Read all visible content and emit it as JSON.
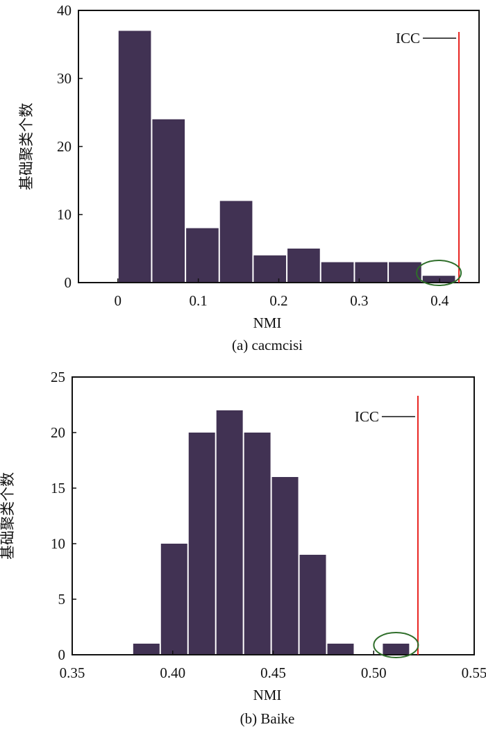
{
  "chart_data": [
    {
      "type": "bar",
      "caption": "(a) cacmcisi",
      "xlabel": "NMI",
      "ylabel": "基础聚类个数",
      "xlim": [
        -0.049,
        0.449
      ],
      "ylim": [
        0,
        40
      ],
      "xticks": [
        "0",
        "0.1",
        "0.2",
        "0.3",
        "0.4"
      ],
      "xtick_values": [
        0,
        0.1,
        0.2,
        0.3,
        0.4
      ],
      "yticks": [
        "0",
        "10",
        "20",
        "30",
        "40"
      ],
      "bin_start": 0.0,
      "bin_width": 0.042,
      "values": [
        37,
        24,
        8,
        12,
        4,
        5,
        3,
        3,
        3,
        1
      ],
      "reference_line": {
        "label": "ICC",
        "x": 0.424,
        "color": "#e8231f"
      },
      "highlight": {
        "bin_index": 9,
        "color": "#2f6e2a"
      },
      "bar_color": "#413253",
      "grid": false
    },
    {
      "type": "bar",
      "caption": "(b) Baike",
      "xlabel": "NMI",
      "ylabel": "基础聚类个数",
      "xlim": [
        0.35,
        0.55
      ],
      "ylim": [
        0,
        25
      ],
      "xticks": [
        "0.35",
        "0.40",
        "0.45",
        "0.50",
        "0.55"
      ],
      "xtick_values": [
        0.35,
        0.4,
        0.45,
        0.5,
        0.55
      ],
      "yticks": [
        "0",
        "5",
        "10",
        "15",
        "20",
        "25"
      ],
      "bin_start": 0.38,
      "bin_width": 0.0138,
      "values": [
        1,
        10,
        20,
        22,
        20,
        16,
        9,
        1,
        0,
        1
      ],
      "reference_line": {
        "label": "ICC",
        "x": 0.522,
        "color": "#e8231f"
      },
      "highlight": {
        "bin_index": 9,
        "color": "#2f6e2a"
      },
      "bar_color": "#413253",
      "grid": false
    }
  ]
}
